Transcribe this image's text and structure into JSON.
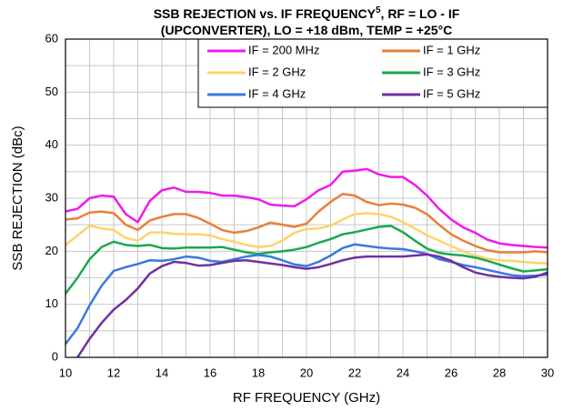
{
  "chart_data": {
    "type": "line",
    "title_line1": "SSB REJECTION vs. IF FREQUENCY",
    "title_superscript": "5",
    "title_line1_end": ", RF = LO - IF",
    "title_line2": "(UPCONVERTER), LO = +18 dBm, TEMP = +25°C",
    "xlabel": "RF FREQUENCY (GHz)",
    "ylabel": "SSB REJECTION (dBc)",
    "xlim": [
      10,
      30
    ],
    "ylim": [
      0,
      60
    ],
    "xticks": [
      10,
      12,
      14,
      16,
      18,
      20,
      22,
      24,
      26,
      28,
      30
    ],
    "yticks": [
      0,
      10,
      20,
      30,
      40,
      50,
      60
    ],
    "xminorticks": [
      11,
      13,
      15,
      17,
      19,
      21,
      23,
      25,
      27,
      29
    ],
    "yminorticks": [
      5,
      15,
      25,
      35,
      45,
      55
    ],
    "grid": true,
    "legend": "top-right",
    "x": [
      10,
      10.5,
      11,
      11.5,
      12,
      12.5,
      13,
      13.5,
      14,
      14.5,
      15,
      15.5,
      16,
      16.5,
      17,
      17.5,
      18,
      18.5,
      19,
      19.5,
      20,
      20.5,
      21,
      21.5,
      22,
      22.5,
      23,
      23.5,
      24,
      24.5,
      25,
      25.5,
      26,
      26.5,
      27,
      27.5,
      28,
      28.5,
      29,
      29.5,
      30
    ],
    "series": [
      {
        "name": "IF = 200 MHz",
        "color": "#ee1aee",
        "values": [
          27.5,
          28,
          30,
          30.5,
          30.3,
          27,
          25.5,
          29.5,
          31.5,
          32,
          31.2,
          31.2,
          31,
          30.5,
          30.5,
          30.2,
          29.8,
          28.8,
          28.6,
          28.5,
          29.8,
          31.5,
          32.5,
          35,
          35.2,
          35.5,
          34.5,
          34,
          34,
          32.5,
          30.5,
          28,
          26,
          24.5,
          23.5,
          22.2,
          21.5,
          21.2,
          21,
          20.8,
          20.7
        ]
      },
      {
        "name": "IF = 1 GHz",
        "color": "#e8803a",
        "values": [
          26,
          26.2,
          27.3,
          27.5,
          27.2,
          25,
          24,
          25.8,
          26.5,
          27,
          27,
          26.3,
          25.2,
          24,
          23.5,
          23.8,
          24.5,
          25.4,
          25,
          24.6,
          25.2,
          27.5,
          29.3,
          30.8,
          30.5,
          29.3,
          28.7,
          29,
          28.8,
          28.2,
          27,
          25,
          23.2,
          22,
          21,
          20.2,
          19.8,
          19.8,
          19.8,
          20,
          19.8
        ]
      },
      {
        "name": "IF = 2 GHz",
        "color": "#fcd46a",
        "values": [
          21.2,
          23,
          24.8,
          24.3,
          24,
          22.5,
          22,
          23.5,
          23.6,
          23.3,
          23.2,
          23.2,
          23,
          22.3,
          21.8,
          21.2,
          20.8,
          21,
          22,
          23.5,
          24.2,
          24.3,
          24.8,
          26,
          27,
          27.2,
          27,
          26.5,
          25.5,
          24.3,
          23,
          22,
          21,
          20,
          19.2,
          18.6,
          18.3,
          18.2,
          18,
          17.8,
          17.7
        ]
      },
      {
        "name": "IF = 3 GHz",
        "color": "#1aaa4a",
        "values": [
          12,
          15,
          18.5,
          20.8,
          21.8,
          21.2,
          21,
          21.2,
          20.6,
          20.5,
          20.7,
          20.7,
          20.7,
          20.8,
          20.3,
          19.8,
          19.5,
          19.8,
          20,
          20.3,
          20.8,
          21.6,
          22.3,
          23.2,
          23.6,
          24.1,
          24.6,
          24.8,
          23.6,
          22,
          20.5,
          19.7,
          19.4,
          19.2,
          18.8,
          18.2,
          17.5,
          16.8,
          16.2,
          16.4,
          16.6
        ]
      },
      {
        "name": "IF = 4 GHz",
        "color": "#3a78e0",
        "values": [
          2.5,
          5.5,
          9.8,
          13.5,
          16.3,
          17,
          17.6,
          18.3,
          18.2,
          18.5,
          19,
          18.8,
          18.2,
          18,
          18.5,
          19,
          19.3,
          19,
          18.3,
          17.5,
          17.2,
          18,
          19.2,
          20.6,
          21.3,
          21,
          20.7,
          20.5,
          20.4,
          20,
          19.5,
          18.5,
          18,
          17.4,
          17,
          16.5,
          16,
          15.5,
          15.3,
          15.4,
          15.6
        ]
      },
      {
        "name": "IF = 5 GHz",
        "color": "#7030a0",
        "values": [
          null,
          0,
          3.5,
          6.5,
          9,
          10.8,
          13,
          15.8,
          17.2,
          18,
          17.8,
          17.3,
          17.4,
          17.8,
          18.2,
          18.3,
          18,
          17.7,
          17.4,
          17,
          16.7,
          17,
          17.6,
          18.3,
          18.8,
          19,
          19,
          19,
          19,
          19.2,
          19.4,
          19,
          18.2,
          17,
          16,
          15.5,
          15.2,
          15,
          14.9,
          15.2,
          16
        ]
      }
    ]
  }
}
